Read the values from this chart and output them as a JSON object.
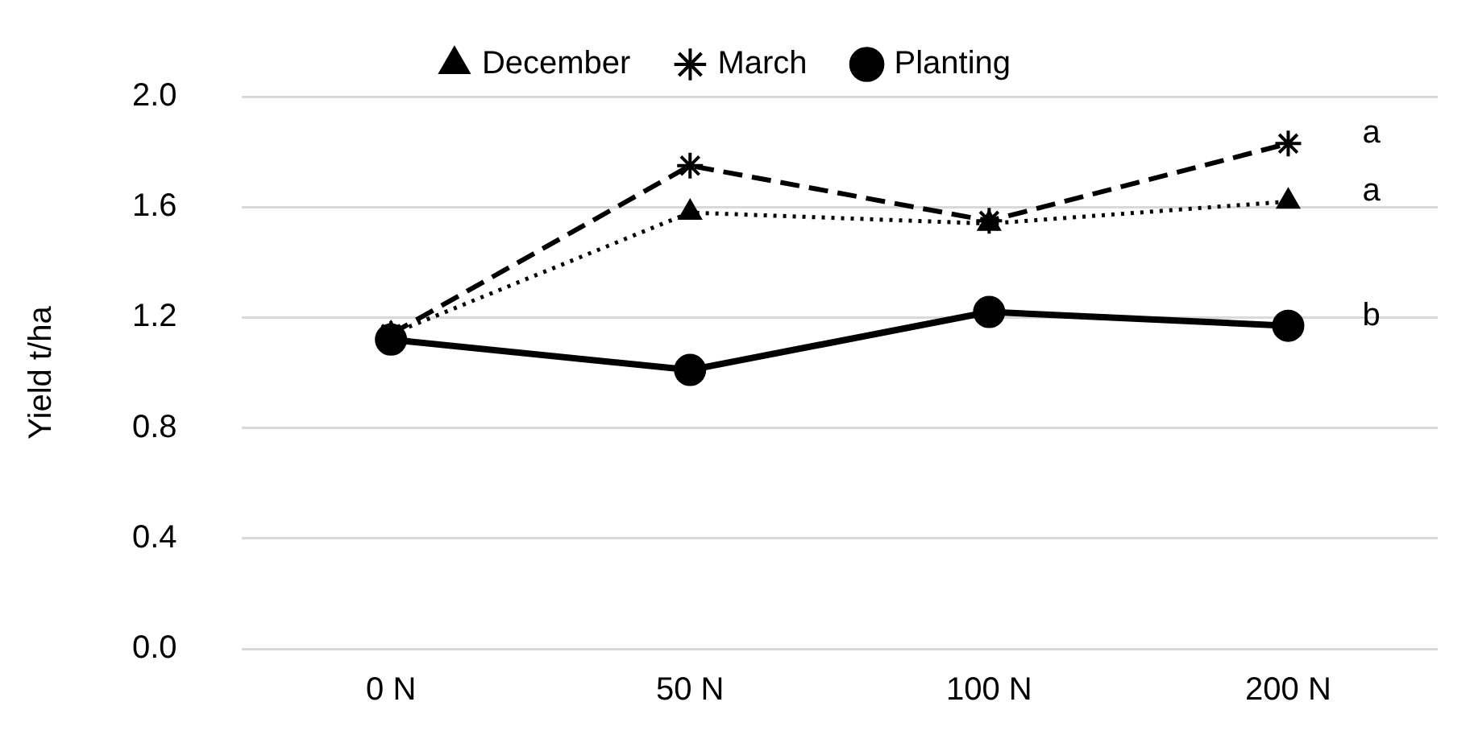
{
  "chart_data": {
    "type": "line",
    "ylabel": "Yield t/ha",
    "categories": [
      "0 N",
      "50 N",
      "100 N",
      "200 N"
    ],
    "series": [
      {
        "name": "December",
        "color": "#000000",
        "marker": "triangle",
        "line_style": "dotted",
        "values": [
          1.14,
          1.58,
          1.54,
          1.62
        ]
      },
      {
        "name": "March",
        "color": "#000000",
        "marker": "cross",
        "line_style": "dashed",
        "values": [
          1.14,
          1.75,
          1.55,
          1.83
        ]
      },
      {
        "name": "Planting",
        "color": "#000000",
        "marker": "circle",
        "line_style": "solid",
        "values": [
          1.12,
          1.01,
          1.22,
          1.17
        ]
      }
    ],
    "ylim": [
      0,
      2
    ],
    "yticks": [
      {
        "value": 0,
        "label": "0.0"
      },
      0.4,
      0.8,
      1.2,
      1.6,
      {
        "value": 2,
        "label": "2.0"
      }
    ],
    "grid": "y",
    "legend": "top",
    "annotations": [
      {
        "text": "a",
        "x": "200 N",
        "y": 1.83
      },
      {
        "text": "a",
        "x": "200 N",
        "y": 1.62
      },
      {
        "text": "b",
        "x": "200 N",
        "y": 1.17
      }
    ]
  }
}
